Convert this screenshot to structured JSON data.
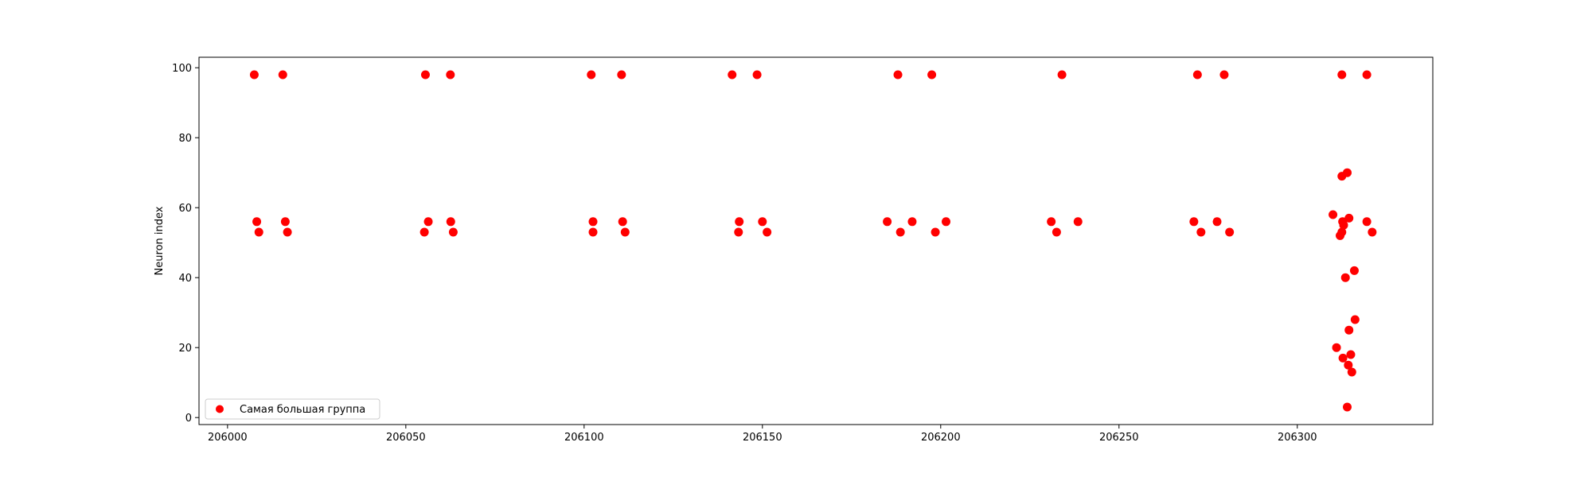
{
  "chart_data": {
    "type": "scatter",
    "title": "",
    "xlabel": "",
    "ylabel": "Neuron index",
    "xlim": [
      205992,
      206338
    ],
    "ylim": [
      -2,
      103
    ],
    "xticks": [
      206000,
      206050,
      206100,
      206150,
      206200,
      206250,
      206300
    ],
    "yticks": [
      0,
      20,
      40,
      60,
      80,
      100
    ],
    "grid": false,
    "legend_position": "lower-left",
    "series": [
      {
        "name": "Самая большая группа",
        "color": "#ff0000",
        "points": [
          [
            206007.5,
            98
          ],
          [
            206015.5,
            98
          ],
          [
            206008.2,
            56
          ],
          [
            206008.8,
            53
          ],
          [
            206016.2,
            56
          ],
          [
            206016.8,
            53
          ],
          [
            206055.5,
            98
          ],
          [
            206062.5,
            98
          ],
          [
            206055.2,
            53
          ],
          [
            206056.3,
            56
          ],
          [
            206062.6,
            56
          ],
          [
            206063.3,
            53
          ],
          [
            206102.0,
            98
          ],
          [
            206110.5,
            98
          ],
          [
            206102.5,
            56
          ],
          [
            206102.5,
            53
          ],
          [
            206110.8,
            56
          ],
          [
            206111.5,
            53
          ],
          [
            206141.5,
            98
          ],
          [
            206148.5,
            98
          ],
          [
            206143.5,
            56
          ],
          [
            206143.3,
            53
          ],
          [
            206150.0,
            56
          ],
          [
            206151.3,
            53
          ],
          [
            206188.0,
            98
          ],
          [
            206197.5,
            98
          ],
          [
            206185.0,
            56
          ],
          [
            206188.7,
            53
          ],
          [
            206192.0,
            56
          ],
          [
            206198.5,
            53
          ],
          [
            206201.5,
            56
          ],
          [
            206234.0,
            98
          ],
          [
            206231.0,
            56
          ],
          [
            206232.5,
            53
          ],
          [
            206238.5,
            56
          ],
          [
            206272.0,
            98
          ],
          [
            206279.5,
            98
          ],
          [
            206271.0,
            56
          ],
          [
            206273.0,
            53
          ],
          [
            206277.5,
            56
          ],
          [
            206281.0,
            53
          ],
          [
            206312.5,
            98
          ],
          [
            206319.5,
            98
          ],
          [
            206312.5,
            69
          ],
          [
            206314.0,
            70
          ],
          [
            206310.0,
            58
          ],
          [
            206312.7,
            56
          ],
          [
            206313.0,
            55
          ],
          [
            206312.5,
            53
          ],
          [
            206312.0,
            52
          ],
          [
            206314.5,
            57
          ],
          [
            206319.5,
            56
          ],
          [
            206321.0,
            53
          ],
          [
            206313.5,
            40
          ],
          [
            206316.0,
            42
          ],
          [
            206316.2,
            28
          ],
          [
            206314.5,
            25
          ],
          [
            206311.0,
            20
          ],
          [
            206312.8,
            17
          ],
          [
            206315.0,
            18
          ],
          [
            206314.3,
            15
          ],
          [
            206315.3,
            13
          ],
          [
            206314.0,
            3
          ]
        ]
      }
    ]
  }
}
